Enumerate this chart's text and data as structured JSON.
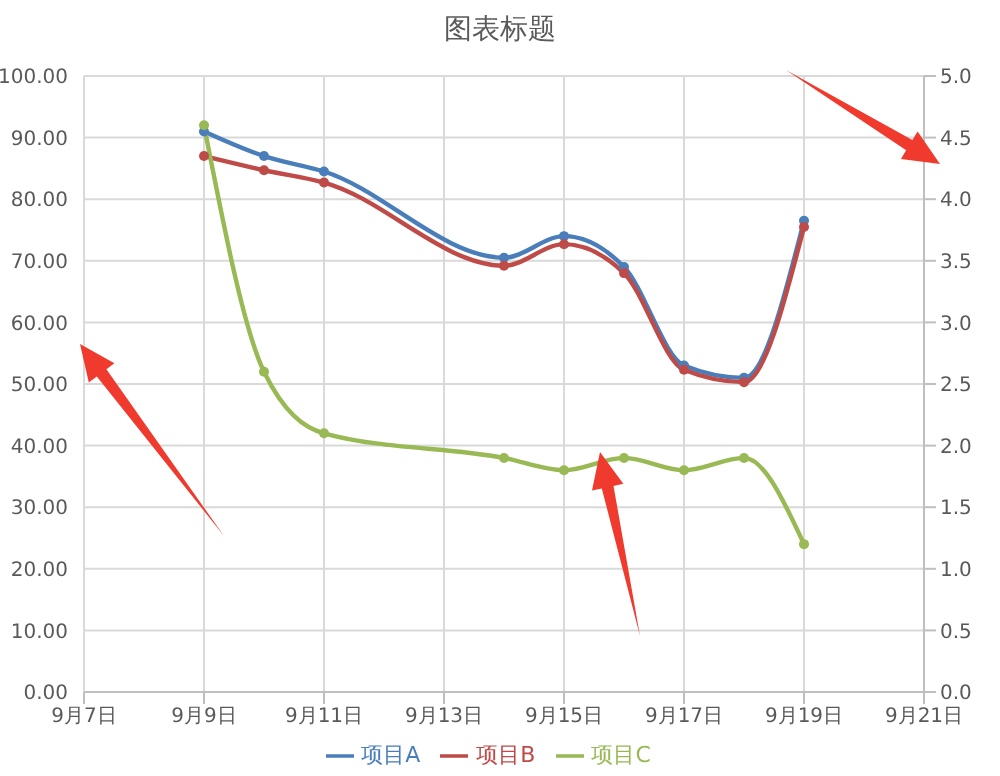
{
  "chart_data": {
    "type": "line",
    "title": "图表标题",
    "x": [
      "--09-09",
      "--09-10",
      "--09-11",
      "--09-14",
      "--09-15",
      "--09-16",
      "--09-17",
      "--09-18",
      "--09-19"
    ],
    "series": [
      {
        "name": "项目A",
        "color": "#4a7ebb",
        "values": [
          91,
          87,
          84.5,
          70.5,
          74,
          69,
          53,
          51,
          76.5
        ]
      },
      {
        "name": "项目B",
        "color": "#be4b48",
        "values": [
          87,
          84.7,
          82.7,
          69.2,
          72.7,
          68,
          52.3,
          50.3,
          75.5
        ]
      },
      {
        "name": "项目C",
        "color": "#98b954",
        "axis": "y2",
        "values": [
          4.6,
          2.6,
          2.1,
          1.9,
          1.8,
          1.9,
          1.8,
          1.9,
          1.2
        ]
      }
    ],
    "xlim": [
      "--09-07",
      "--09-21"
    ],
    "xticks": [
      {
        "value": "--09-07",
        "label": "9月7日"
      },
      {
        "value": "--09-09",
        "label": "9月9日"
      },
      {
        "value": "--09-11",
        "label": "9月11日"
      },
      {
        "value": "--09-13",
        "label": "9月13日"
      },
      {
        "value": "--09-15",
        "label": "9月15日"
      },
      {
        "value": "--09-17",
        "label": "9月17日"
      },
      {
        "value": "--09-19",
        "label": "9月19日"
      },
      {
        "value": "--09-21",
        "label": "9月21日"
      }
    ],
    "ylim": [
      0,
      100
    ],
    "yticks": [
      {
        "value": 0,
        "label": "0.00"
      },
      {
        "value": 10,
        "label": "10.00"
      },
      {
        "value": 20,
        "label": "20.00"
      },
      {
        "value": 30,
        "label": "30.00"
      },
      {
        "value": 40,
        "label": "40.00"
      },
      {
        "value": 50,
        "label": "50.00"
      },
      {
        "value": 60,
        "label": "60.00"
      },
      {
        "value": 70,
        "label": "70.00"
      },
      {
        "value": 80,
        "label": "80.00"
      },
      {
        "value": 90,
        "label": "90.00"
      },
      {
        "value": 100,
        "label": "100.00"
      }
    ],
    "y2lim": [
      0,
      5
    ],
    "y2ticks": [
      {
        "value": 0,
        "label": "0.0"
      },
      {
        "value": 0.5,
        "label": "0.5"
      },
      {
        "value": 1,
        "label": "1.0"
      },
      {
        "value": 1.5,
        "label": "1.5"
      },
      {
        "value": 2,
        "label": "2.0"
      },
      {
        "value": 2.5,
        "label": "2.5"
      },
      {
        "value": 3,
        "label": "3.0"
      },
      {
        "value": 3.5,
        "label": "3.5"
      },
      {
        "value": 4,
        "label": "4.0"
      },
      {
        "value": 4.5,
        "label": "4.5"
      },
      {
        "value": 5,
        "label": "5.0"
      }
    ],
    "grid": true,
    "legend": "bottom",
    "marker": "circle",
    "line_style": "solid"
  }
}
